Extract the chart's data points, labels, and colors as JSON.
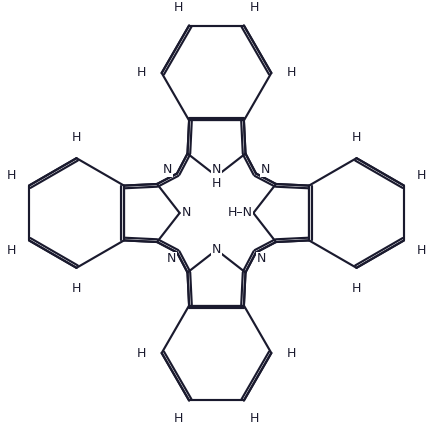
{
  "bg": "#ffffff",
  "lc": "#1a1a2e",
  "tc": "#1a1a2e",
  "fig_w": 4.33,
  "fig_h": 4.26,
  "dpi": 100,
  "lw": 1.55,
  "dbo": 0.05,
  "fs": 9.0,
  "xlim": [
    -3.5,
    3.5
  ],
  "ylim": [
    -3.6,
    3.6
  ]
}
